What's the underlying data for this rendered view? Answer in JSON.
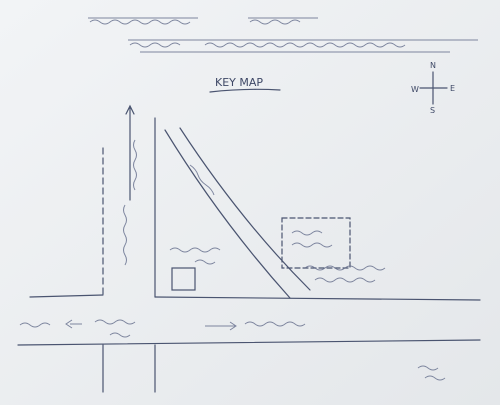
{
  "map": {
    "title": "KEY MAP",
    "compass": {
      "north": "N",
      "south": "S",
      "west": "W",
      "east": "E"
    }
  }
}
